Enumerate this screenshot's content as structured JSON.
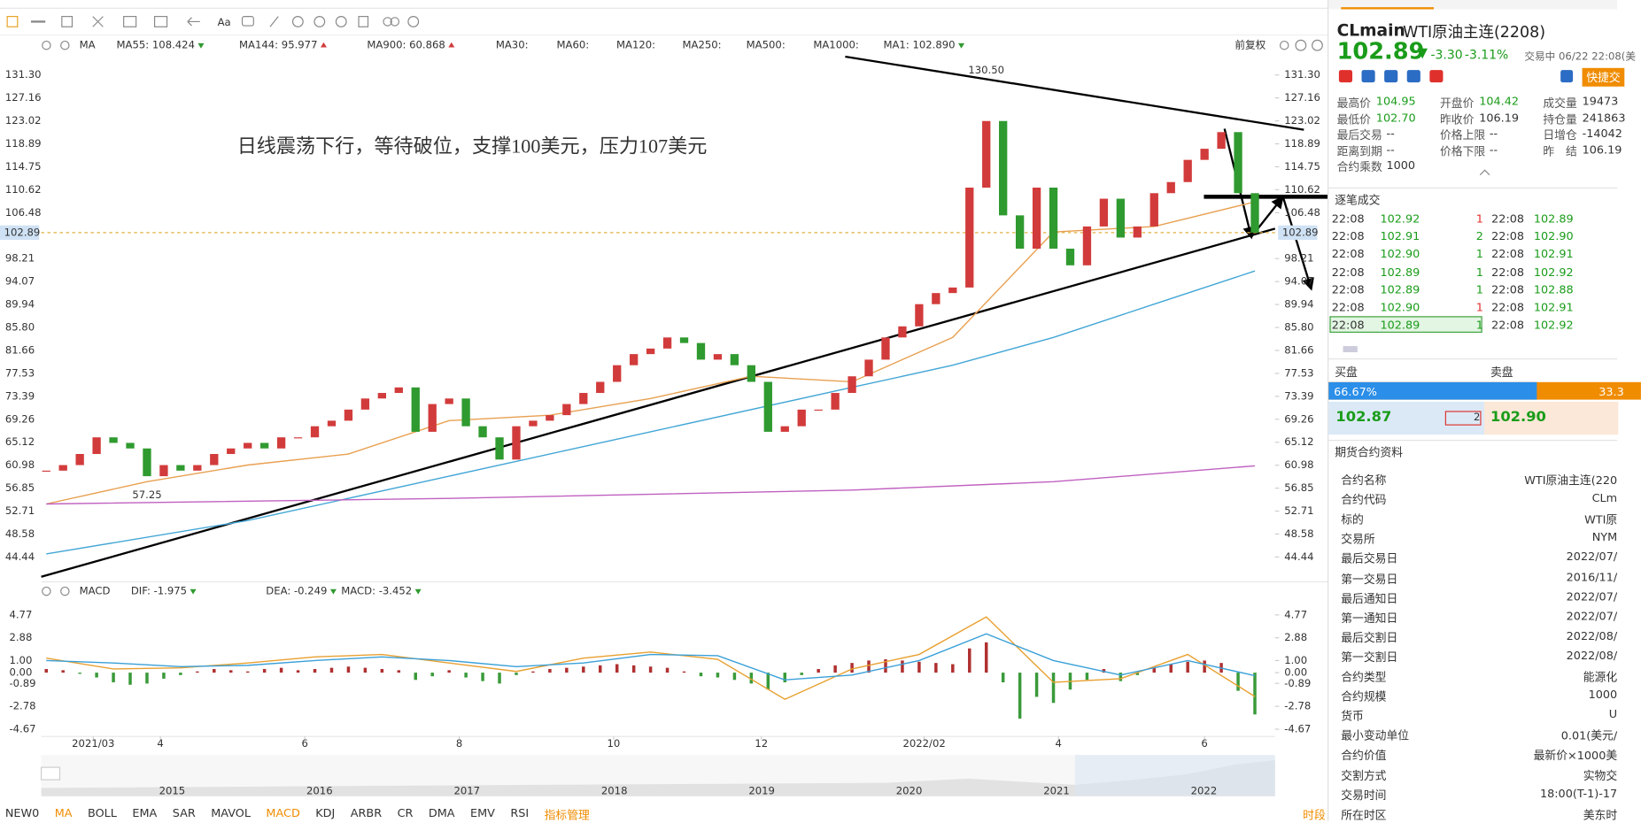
{
  "toolbar": {
    "font_button": "Aa"
  },
  "chart_data": [
    {
      "type": "candlestick",
      "indicator": "MA",
      "adjust": "前复权",
      "xlim": [
        -0.3,
        73.2
      ],
      "ylim": [
        40.5,
        134.6
      ],
      "yticks": [
        {
          "value": 131.3,
          "label": "131.30"
        },
        127.16,
        123.02,
        118.89,
        114.75,
        110.62,
        106.48,
        98.21,
        94.07,
        89.94,
        {
          "value": 85.8,
          "label": "85.80"
        },
        81.66,
        77.53,
        73.39,
        69.26,
        65.12,
        60.98,
        56.85,
        52.71,
        48.58,
        44.44
      ],
      "last_price": {
        "value": 102.89,
        "label": "102.89",
        "color": "#e0b040"
      },
      "candles": {
        "name": "MA1: 102.890",
        "up_color": "#d23b3b",
        "down_color": "#2f9a2f",
        "x": [
          0,
          1,
          2,
          3,
          4,
          5,
          6,
          7,
          8,
          9,
          10,
          11,
          12,
          13,
          14,
          15,
          16,
          17,
          18,
          19,
          20,
          21,
          22,
          23,
          24,
          25,
          26,
          27,
          28,
          29,
          30,
          31,
          32,
          33,
          34,
          35,
          36,
          37,
          38,
          39,
          40,
          41,
          42,
          43,
          44,
          45,
          46,
          47,
          48,
          49,
          50,
          51,
          52,
          53,
          54,
          55,
          56,
          57,
          58,
          59,
          60,
          61,
          62,
          63,
          64,
          65,
          66,
          67,
          68,
          69,
          70,
          71,
          72
        ],
        "values": [
          60,
          61,
          63,
          66,
          65,
          64,
          59,
          61,
          60,
          61,
          63,
          64,
          65,
          64,
          66,
          66,
          68,
          69,
          71,
          73,
          74,
          75,
          67,
          72,
          73,
          68,
          66,
          62,
          68,
          69,
          70,
          72,
          74,
          76,
          79,
          81,
          82,
          84,
          83,
          80,
          81,
          79,
          76,
          67,
          68,
          71,
          71,
          74,
          77,
          80,
          84,
          86,
          90,
          92,
          93,
          111,
          123,
          106,
          100,
          111,
          100,
          97,
          104,
          109,
          102,
          104,
          110,
          112,
          116,
          118,
          121,
          110,
          102.89
        ]
      },
      "series": [
        {
          "name": "MA55: 108.424",
          "color": "#e8a050",
          "x": [
            0,
            6,
            12,
            18,
            24,
            30,
            36,
            42,
            48,
            54,
            60,
            66,
            72
          ],
          "values": [
            54,
            58,
            61,
            63,
            69,
            70,
            73,
            77,
            76,
            84,
            103,
            104,
            108.424
          ]
        },
        {
          "name": "MA144: 95.977",
          "color": "#43a6d6",
          "x": [
            0,
            12,
            24,
            36,
            48,
            54,
            60,
            66,
            72
          ],
          "values": [
            45,
            51,
            59,
            67,
            75,
            79,
            84,
            90,
            95.977
          ]
        },
        {
          "name": "MA900: 60.868",
          "color": "#c060c0",
          "x": [
            0,
            24,
            48,
            60,
            72
          ],
          "values": [
            54,
            55,
            56.5,
            58,
            60.868
          ]
        }
      ],
      "inactive_legend": [
        "MA30:",
        "MA60:",
        "MA120:",
        "MA250:",
        "MA500:",
        "MA1000:"
      ],
      "annotations": [
        {
          "label": "130.50",
          "x": 56,
          "value": 130.5
        },
        {
          "label": "57.25",
          "x": 6,
          "value": 57.25
        }
      ],
      "note": "日线震荡下行，等待破位，支撑100美元，压力107美元"
    },
    {
      "type": "bar",
      "indicator": "MACD",
      "xlim": [
        -0.3,
        73.2
      ],
      "ylim": [
        -5.27,
        5.79
      ],
      "yticks": [
        4.77,
        2.88,
        {
          "value": 1,
          "label": "1.00"
        },
        {
          "value": 0,
          "label": "0.00"
        },
        -0.89,
        -2.78,
        -4.67
      ],
      "xticks": [
        {
          "value": 2.8,
          "label": "2021/03"
        },
        {
          "value": 6.8,
          "label": "4"
        },
        {
          "value": 15.4,
          "label": "6"
        },
        {
          "value": 24.6,
          "label": "8"
        },
        {
          "value": 33.8,
          "label": "10"
        },
        {
          "value": 42.6,
          "label": "12"
        },
        {
          "value": 52.3,
          "label": "2022/02"
        },
        {
          "value": 60.3,
          "label": "4"
        },
        {
          "value": 69,
          "label": "6"
        }
      ],
      "series": [
        {
          "name": "DIF: -1.975",
          "color": "#e8a030",
          "x": [
            0,
            4,
            8,
            12,
            16,
            20,
            24,
            28,
            32,
            36,
            40,
            44,
            48,
            52,
            56,
            60,
            64,
            68,
            72
          ],
          "values": [
            1.2,
            0.3,
            0.4,
            0.8,
            1.3,
            1.5,
            0.8,
            0.1,
            1.2,
            1.7,
            1.1,
            -2.2,
            0.3,
            1.5,
            4.6,
            -0.8,
            -0.5,
            1.5,
            -1.975
          ]
        },
        {
          "name": "DEA: -0.249",
          "color": "#3aa0d8",
          "x": [
            0,
            4,
            8,
            12,
            16,
            20,
            24,
            28,
            32,
            36,
            40,
            44,
            48,
            52,
            56,
            60,
            64,
            68,
            72
          ],
          "values": [
            1.0,
            0.8,
            0.5,
            0.6,
            1.0,
            1.3,
            1.0,
            0.5,
            0.8,
            1.5,
            1.4,
            -0.6,
            -0.2,
            1.0,
            3.2,
            1.0,
            -0.2,
            1.0,
            -0.249
          ]
        }
      ],
      "histogram": {
        "name": "MACD: -3.452",
        "legend_color": "#c060c0",
        "up_color": "#b03030",
        "down_color": "#3a9a3a",
        "x": [
          0,
          1,
          2,
          3,
          4,
          5,
          6,
          7,
          8,
          9,
          10,
          11,
          12,
          13,
          14,
          15,
          16,
          17,
          18,
          19,
          20,
          21,
          22,
          23,
          24,
          25,
          26,
          27,
          28,
          29,
          30,
          31,
          32,
          33,
          34,
          35,
          36,
          37,
          38,
          39,
          40,
          41,
          42,
          43,
          44,
          45,
          46,
          47,
          48,
          49,
          50,
          51,
          52,
          53,
          54,
          55,
          56,
          57,
          58,
          59,
          60,
          61,
          62,
          63,
          64,
          65,
          66,
          67,
          68,
          69,
          70,
          71,
          72
        ],
        "values": [
          0.3,
          0.2,
          -0.1,
          -0.4,
          -0.8,
          -1.0,
          -0.9,
          -0.5,
          -0.2,
          0.1,
          0.3,
          0.2,
          0.1,
          0.3,
          0.4,
          0.2,
          0.3,
          0.4,
          0.5,
          0.4,
          0.3,
          0.2,
          -0.6,
          -0.3,
          0.2,
          -0.4,
          -0.7,
          -0.9,
          -0.2,
          0.1,
          0.3,
          0.4,
          0.5,
          0.6,
          0.7,
          0.6,
          0.5,
          0.4,
          0.1,
          -0.3,
          -0.4,
          -0.6,
          -0.9,
          -1.4,
          -0.8,
          -0.2,
          0.3,
          0.6,
          0.8,
          1.0,
          1.1,
          1.0,
          0.9,
          0.8,
          0.7,
          2.0,
          2.5,
          -0.8,
          -3.8,
          -2.0,
          -2.5,
          -1.4,
          -0.6,
          0.3,
          -0.7,
          -0.2,
          0.4,
          0.7,
          0.9,
          1.0,
          0.8,
          -1.5,
          -3.452
        ]
      }
    }
  ],
  "navigator": {
    "years": [
      "2015",
      "2016",
      "2017",
      "2018",
      "2019",
      "2020",
      "2021",
      "2022"
    ]
  },
  "indicator_bar": {
    "items": [
      {
        "label": "NEW0"
      },
      {
        "label": "MA",
        "active": true
      },
      {
        "label": "BOLL"
      },
      {
        "label": "EMA"
      },
      {
        "label": "SAR"
      },
      {
        "label": "MAVOL"
      },
      {
        "label": "MACD",
        "active": true
      },
      {
        "label": "KDJ"
      },
      {
        "label": "ARBR"
      },
      {
        "label": "CR"
      },
      {
        "label": "DMA"
      },
      {
        "label": "EMV"
      },
      {
        "label": "RSI"
      },
      {
        "label": "指标管理",
        "active": true
      }
    ],
    "right": "时段"
  },
  "quote": {
    "symbol": "CLmain",
    "name": "WTI原油主连(2208)",
    "price": "102.89",
    "change": "-3.30",
    "change_pct": "-3.11%",
    "status": "交易中 06/22 22:08(美",
    "quick_trade": "快捷交"
  },
  "stats": [
    [
      [
        "最高价",
        "104.95",
        "#1a9c1a"
      ],
      [
        "开盘价",
        "104.42",
        "#1a9c1a"
      ],
      [
        "成交量",
        "19473",
        "#333"
      ]
    ],
    [
      [
        "最低价",
        "102.70",
        "#1a9c1a"
      ],
      [
        "昨收价",
        "106.19",
        "#333"
      ],
      [
        "持仓量",
        "241863",
        "#333"
      ]
    ],
    [
      [
        "最后交易",
        "--",
        "#333"
      ],
      [
        "价格上限",
        "--",
        "#333"
      ],
      [
        "日增仓",
        "-14042",
        "#333"
      ]
    ],
    [
      [
        "距离到期",
        "--",
        "#333"
      ],
      [
        "价格下限",
        "--",
        "#333"
      ],
      [
        "昨　结",
        "106.19",
        "#333"
      ]
    ],
    [
      [
        "合约乘数",
        "1000",
        "#333"
      ]
    ]
  ],
  "trades": {
    "title": "逐笔成交",
    "rows": [
      {
        "time": "22:08",
        "price": "102.92",
        "qty": "1",
        "qty_color": "#e0302c",
        "time2": "22:08",
        "price2": "102.89"
      },
      {
        "time": "22:08",
        "price": "102.91",
        "qty": "2",
        "qty_color": "#1a9c1a",
        "time2": "22:08",
        "price2": "102.90"
      },
      {
        "time": "22:08",
        "price": "102.90",
        "qty": "1",
        "qty_color": "#1a9c1a",
        "time2": "22:08",
        "price2": "102.91"
      },
      {
        "time": "22:08",
        "price": "102.89",
        "qty": "1",
        "qty_color": "#1a9c1a",
        "time2": "22:08",
        "price2": "102.92"
      },
      {
        "time": "22:08",
        "price": "102.89",
        "qty": "1",
        "qty_color": "#1a9c1a",
        "time2": "22:08",
        "price2": "102.88"
      },
      {
        "time": "22:08",
        "price": "102.90",
        "qty": "1",
        "qty_color": "#e0302c",
        "time2": "22:08",
        "price2": "102.91"
      },
      {
        "time": "22:08",
        "price": "102.89",
        "qty": "1",
        "qty_color": "#1a9c1a",
        "time2": "22:08",
        "price2": "102.92",
        "highlight": true
      }
    ]
  },
  "order_book": {
    "bid_label": "买盘",
    "ask_label": "卖盘",
    "bid_pct": 66.67,
    "bid_pct_label": "66.67%",
    "ask_pct_label": "33.3",
    "bid": "102.87",
    "size": "2",
    "ask": "102.90"
  },
  "contract": {
    "title": "期货合约资料",
    "rows": [
      [
        "合约名称",
        "WTI原油主连(220"
      ],
      [
        "合约代码",
        "CLm"
      ],
      [
        "标的",
        "WTI原"
      ],
      [
        "交易所",
        "NYM"
      ],
      [
        "最后交易日",
        "2022/07/"
      ],
      [
        "第一交易日",
        "2016/11/"
      ],
      [
        "最后通知日",
        "2022/07/"
      ],
      [
        "第一通知日",
        "2022/07/"
      ],
      [
        "最后交割日",
        "2022/08/"
      ],
      [
        "第一交割日",
        "2022/08/"
      ],
      [
        "合约类型",
        "能源化"
      ],
      [
        "合约规模",
        "1000"
      ],
      [
        "货币",
        "U"
      ],
      [
        "最小变动单位",
        "0.01(美元/"
      ],
      [
        "合约价值",
        "最新价×1000美"
      ],
      [
        "交割方式",
        "实物交"
      ],
      [
        "交易时间",
        "18:00(T-1)-17"
      ],
      [
        "所在时区",
        "美东时"
      ]
    ]
  }
}
